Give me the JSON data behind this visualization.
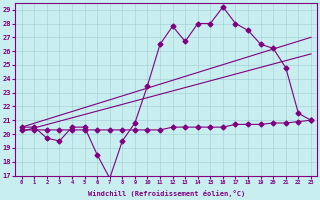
{
  "xlabel": "Windchill (Refroidissement éolien,°C)",
  "background_color": "#c8eef0",
  "line_color": "#800080",
  "ylim": [
    17,
    29.5
  ],
  "xlim": [
    -0.5,
    23.5
  ],
  "yticks": [
    17,
    18,
    19,
    20,
    21,
    22,
    23,
    24,
    25,
    26,
    27,
    28,
    29
  ],
  "xticks": [
    0,
    1,
    2,
    3,
    4,
    5,
    6,
    7,
    8,
    9,
    10,
    11,
    12,
    13,
    14,
    15,
    16,
    17,
    18,
    19,
    20,
    21,
    22,
    23
  ],
  "series1_x": [
    0,
    1,
    2,
    3,
    4,
    5,
    6,
    7,
    8,
    9,
    10,
    11,
    12,
    13,
    14,
    15,
    16,
    17,
    18,
    19,
    20,
    21,
    22,
    23
  ],
  "series1_y": [
    20.5,
    20.5,
    19.7,
    19.5,
    20.5,
    20.5,
    18.5,
    16.8,
    19.5,
    20.8,
    23.5,
    26.5,
    27.8,
    26.7,
    28.0,
    28.0,
    29.2,
    28.0,
    27.5,
    26.5,
    26.2,
    24.8,
    21.5,
    21.0
  ],
  "series2_x": [
    0,
    1,
    2,
    3,
    4,
    5,
    6,
    7,
    8,
    9,
    10,
    11,
    12,
    13,
    14,
    15,
    16,
    17,
    18,
    19,
    20,
    21,
    22,
    23
  ],
  "series2_y": [
    20.3,
    20.3,
    20.3,
    20.3,
    20.3,
    20.3,
    20.3,
    20.3,
    20.3,
    20.3,
    20.3,
    20.3,
    20.5,
    20.5,
    20.5,
    20.5,
    20.5,
    20.7,
    20.7,
    20.7,
    20.8,
    20.8,
    20.9,
    21.0
  ],
  "trend1_x": [
    0,
    23
  ],
  "trend1_y": [
    20.5,
    27.0
  ],
  "trend2_x": [
    0,
    23
  ],
  "trend2_y": [
    20.2,
    25.8
  ]
}
